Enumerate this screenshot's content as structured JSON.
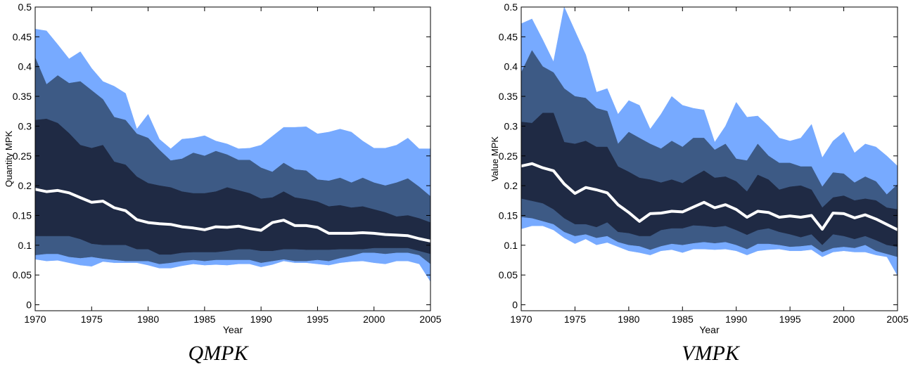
{
  "chart_data": [
    {
      "type": "fan",
      "title": "QMPK",
      "xlabel": "Year",
      "ylabel": "Quantity MPK",
      "x": [
        1970,
        1971,
        1972,
        1973,
        1974,
        1975,
        1976,
        1977,
        1978,
        1979,
        1980,
        1981,
        1982,
        1983,
        1984,
        1985,
        1986,
        1987,
        1988,
        1989,
        1990,
        1991,
        1992,
        1993,
        1994,
        1995,
        1996,
        1997,
        1998,
        1999,
        2000,
        2001,
        2002,
        2003,
        2004,
        2005
      ],
      "xlim": [
        1970,
        2005
      ],
      "xticks": [
        1970,
        1975,
        1980,
        1985,
        1990,
        1995,
        2000,
        2005
      ],
      "ylim": [
        -0.01,
        0.5
      ],
      "yticks": [
        0,
        0.05,
        0.1,
        0.15,
        0.2,
        0.25,
        0.3,
        0.35,
        0.4,
        0.45,
        0.5
      ],
      "series": [
        {
          "kind": "area",
          "color": "#77aaff",
          "values": [
            0.463,
            0.46,
            0.437,
            0.413,
            0.425,
            0.397,
            0.375,
            0.367,
            0.355,
            0.295,
            0.32,
            0.278,
            0.262,
            0.278,
            0.28,
            0.284,
            0.275,
            0.27,
            0.262,
            0.263,
            0.268,
            0.283,
            0.298,
            0.298,
            0.299,
            0.287,
            0.29,
            0.295,
            0.29,
            0.275,
            0.263,
            0.263,
            0.268,
            0.28,
            0.262,
            0.262
          ]
        },
        {
          "kind": "area",
          "color": "#3d5a85",
          "values": [
            0.415,
            0.37,
            0.385,
            0.372,
            0.375,
            0.36,
            0.345,
            0.315,
            0.31,
            0.287,
            0.28,
            0.26,
            0.242,
            0.245,
            0.255,
            0.25,
            0.258,
            0.252,
            0.243,
            0.243,
            0.23,
            0.223,
            0.238,
            0.227,
            0.225,
            0.21,
            0.208,
            0.213,
            0.205,
            0.213,
            0.205,
            0.2,
            0.205,
            0.212,
            0.198,
            0.182
          ]
        },
        {
          "kind": "area",
          "color": "#1f2a44",
          "values": [
            0.31,
            0.312,
            0.305,
            0.288,
            0.268,
            0.263,
            0.268,
            0.24,
            0.235,
            0.215,
            0.204,
            0.2,
            0.197,
            0.19,
            0.187,
            0.187,
            0.19,
            0.197,
            0.192,
            0.187,
            0.178,
            0.18,
            0.19,
            0.18,
            0.177,
            0.173,
            0.165,
            0.167,
            0.163,
            0.165,
            0.16,
            0.155,
            0.148,
            0.15,
            0.145,
            0.138
          ]
        },
        {
          "kind": "area",
          "color": "#3d5a85",
          "values": [
            0.115,
            0.115,
            0.115,
            0.115,
            0.11,
            0.102,
            0.1,
            0.1,
            0.1,
            0.093,
            0.093,
            0.084,
            0.084,
            0.087,
            0.088,
            0.088,
            0.088,
            0.09,
            0.093,
            0.093,
            0.09,
            0.09,
            0.093,
            0.093,
            0.092,
            0.092,
            0.092,
            0.093,
            0.093,
            0.093,
            0.095,
            0.095,
            0.095,
            0.095,
            0.09,
            0.085
          ]
        },
        {
          "kind": "area",
          "color": "#77aaff",
          "values": [
            0.083,
            0.085,
            0.085,
            0.08,
            0.078,
            0.08,
            0.077,
            0.075,
            0.073,
            0.073,
            0.073,
            0.068,
            0.07,
            0.073,
            0.075,
            0.073,
            0.075,
            0.075,
            0.075,
            0.075,
            0.07,
            0.073,
            0.076,
            0.073,
            0.073,
            0.075,
            0.073,
            0.078,
            0.082,
            0.087,
            0.087,
            0.085,
            0.087,
            0.087,
            0.083,
            0.068
          ]
        },
        {
          "kind": "area",
          "color": "#ffffff",
          "values": [
            0.076,
            0.073,
            0.074,
            0.07,
            0.066,
            0.064,
            0.072,
            0.07,
            0.07,
            0.07,
            0.066,
            0.061,
            0.061,
            0.065,
            0.068,
            0.066,
            0.067,
            0.066,
            0.068,
            0.068,
            0.063,
            0.067,
            0.073,
            0.07,
            0.07,
            0.068,
            0.066,
            0.07,
            0.072,
            0.073,
            0.07,
            0.068,
            0.073,
            0.073,
            0.068,
            0.038
          ]
        },
        {
          "kind": "line",
          "color": "#ffffff",
          "values": [
            0.194,
            0.19,
            0.192,
            0.188,
            0.18,
            0.172,
            0.174,
            0.163,
            0.158,
            0.143,
            0.138,
            0.136,
            0.135,
            0.131,
            0.129,
            0.126,
            0.131,
            0.13,
            0.132,
            0.128,
            0.125,
            0.138,
            0.142,
            0.133,
            0.133,
            0.13,
            0.12,
            0.12,
            0.12,
            0.121,
            0.12,
            0.118,
            0.117,
            0.116,
            0.111,
            0.107
          ]
        }
      ]
    },
    {
      "type": "fan",
      "title": "VMPK",
      "xlabel": "Year",
      "ylabel": "Value MPK",
      "x": [
        1970,
        1971,
        1972,
        1973,
        1974,
        1975,
        1976,
        1977,
        1978,
        1979,
        1980,
        1981,
        1982,
        1983,
        1984,
        1985,
        1986,
        1987,
        1988,
        1989,
        1990,
        1991,
        1992,
        1993,
        1994,
        1995,
        1996,
        1997,
        1998,
        1999,
        2000,
        2001,
        2002,
        2003,
        2004,
        2005
      ],
      "xlim": [
        1970,
        2005
      ],
      "xticks": [
        1970,
        1975,
        1980,
        1985,
        1990,
        1995,
        2000,
        2005
      ],
      "ylim": [
        -0.01,
        0.5
      ],
      "yticks": [
        0,
        0.05,
        0.1,
        0.15,
        0.2,
        0.25,
        0.3,
        0.35,
        0.4,
        0.45,
        0.5
      ],
      "series": [
        {
          "kind": "area",
          "color": "#77aaff",
          "values": [
            0.472,
            0.48,
            0.445,
            0.408,
            0.5,
            0.46,
            0.42,
            0.357,
            0.363,
            0.32,
            0.343,
            0.335,
            0.295,
            0.32,
            0.35,
            0.335,
            0.33,
            0.327,
            0.273,
            0.3,
            0.34,
            0.315,
            0.317,
            0.3,
            0.28,
            0.275,
            0.28,
            0.303,
            0.247,
            0.275,
            0.29,
            0.255,
            0.27,
            0.265,
            0.25,
            0.233
          ]
        },
        {
          "kind": "area",
          "color": "#3d5a85",
          "values": [
            0.39,
            0.427,
            0.4,
            0.39,
            0.363,
            0.35,
            0.347,
            0.33,
            0.325,
            0.27,
            0.29,
            0.28,
            0.27,
            0.262,
            0.275,
            0.265,
            0.28,
            0.28,
            0.26,
            0.27,
            0.245,
            0.242,
            0.27,
            0.25,
            0.238,
            0.238,
            0.232,
            0.232,
            0.198,
            0.222,
            0.22,
            0.205,
            0.215,
            0.207,
            0.185,
            0.202
          ]
        },
        {
          "kind": "area",
          "color": "#1f2a44",
          "values": [
            0.307,
            0.305,
            0.322,
            0.322,
            0.273,
            0.27,
            0.275,
            0.265,
            0.265,
            0.232,
            0.223,
            0.213,
            0.21,
            0.205,
            0.21,
            0.204,
            0.215,
            0.225,
            0.213,
            0.215,
            0.207,
            0.19,
            0.218,
            0.21,
            0.193,
            0.198,
            0.2,
            0.193,
            0.163,
            0.18,
            0.183,
            0.175,
            0.178,
            0.175,
            0.163,
            0.16
          ]
        },
        {
          "kind": "area",
          "color": "#3d5a85",
          "values": [
            0.178,
            0.174,
            0.17,
            0.16,
            0.145,
            0.135,
            0.135,
            0.13,
            0.138,
            0.122,
            0.12,
            0.115,
            0.115,
            0.125,
            0.128,
            0.128,
            0.133,
            0.132,
            0.13,
            0.132,
            0.125,
            0.117,
            0.125,
            0.128,
            0.122,
            0.118,
            0.113,
            0.118,
            0.1,
            0.118,
            0.115,
            0.11,
            0.115,
            0.108,
            0.1,
            0.097
          ]
        },
        {
          "kind": "area",
          "color": "#77aaff",
          "values": [
            0.147,
            0.145,
            0.14,
            0.135,
            0.122,
            0.115,
            0.118,
            0.112,
            0.115,
            0.105,
            0.1,
            0.098,
            0.092,
            0.098,
            0.102,
            0.1,
            0.103,
            0.105,
            0.103,
            0.105,
            0.1,
            0.093,
            0.102,
            0.102,
            0.1,
            0.097,
            0.098,
            0.1,
            0.088,
            0.095,
            0.097,
            0.095,
            0.1,
            0.09,
            0.085,
            0.08
          ]
        },
        {
          "kind": "area",
          "color": "#ffffff",
          "values": [
            0.127,
            0.132,
            0.132,
            0.125,
            0.112,
            0.102,
            0.11,
            0.1,
            0.104,
            0.097,
            0.09,
            0.087,
            0.083,
            0.09,
            0.092,
            0.087,
            0.093,
            0.093,
            0.092,
            0.093,
            0.09,
            0.083,
            0.09,
            0.092,
            0.093,
            0.09,
            0.09,
            0.092,
            0.08,
            0.088,
            0.09,
            0.088,
            0.088,
            0.083,
            0.08,
            0.048
          ]
        },
        {
          "kind": "line",
          "color": "#ffffff",
          "values": [
            0.233,
            0.237,
            0.23,
            0.225,
            0.203,
            0.187,
            0.197,
            0.193,
            0.188,
            0.168,
            0.155,
            0.14,
            0.153,
            0.154,
            0.157,
            0.156,
            0.164,
            0.172,
            0.163,
            0.168,
            0.16,
            0.147,
            0.157,
            0.155,
            0.147,
            0.149,
            0.147,
            0.15,
            0.127,
            0.154,
            0.153,
            0.146,
            0.151,
            0.144,
            0.135,
            0.126
          ]
        }
      ]
    }
  ]
}
